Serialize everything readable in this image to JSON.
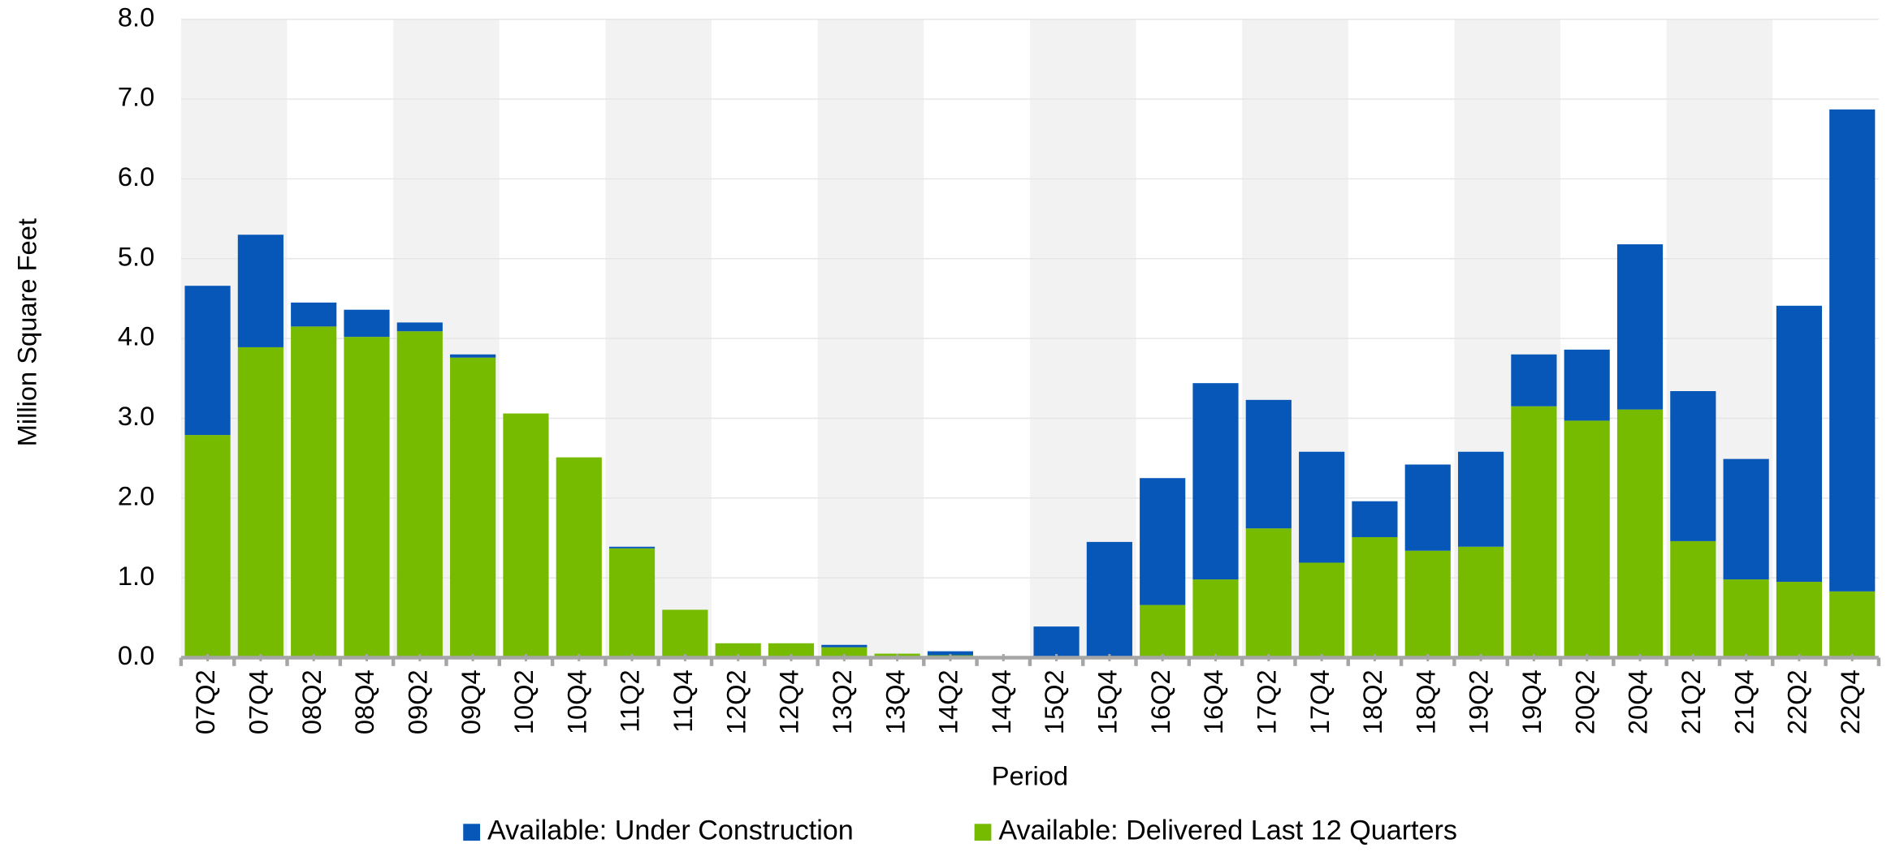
{
  "chart_data": {
    "type": "stacked_bar",
    "y_label": "Million Square Feet",
    "x_label": "Period",
    "categories": [
      "07Q2",
      "07Q4",
      "08Q2",
      "08Q4",
      "09Q2",
      "09Q4",
      "10Q2",
      "10Q4",
      "11Q2",
      "11Q4",
      "12Q2",
      "12Q4",
      "13Q2",
      "13Q4",
      "14Q2",
      "14Q4",
      "15Q2",
      "15Q4",
      "16Q2",
      "16Q4",
      "17Q2",
      "17Q4",
      "18Q2",
      "18Q4",
      "19Q2",
      "19Q4",
      "20Q2",
      "20Q4",
      "21Q2",
      "21Q4",
      "22Q2",
      "22Q4"
    ],
    "series": [
      {
        "name": "Available: Delivered Last 12 Quarters",
        "color": "#77bb00",
        "values": [
          2.79,
          3.89,
          4.15,
          4.02,
          4.09,
          3.76,
          3.06,
          2.51,
          1.37,
          0.6,
          0.18,
          0.18,
          0.13,
          0.05,
          0.03,
          0,
          0,
          0,
          0.66,
          0.98,
          1.62,
          1.19,
          1.51,
          1.34,
          1.39,
          3.15,
          2.97,
          3.11,
          1.46,
          0.98,
          0.95,
          0.83
        ]
      },
      {
        "name": "Available: Under Construction",
        "color": "#0757b9",
        "values": [
          1.87,
          1.41,
          0.3,
          0.34,
          0.11,
          0.04,
          0,
          0,
          0.02,
          0,
          0,
          0,
          0.03,
          0,
          0.05,
          0,
          0.39,
          1.45,
          1.59,
          2.46,
          1.61,
          1.39,
          0.45,
          1.08,
          1.19,
          0.65,
          0.89,
          2.07,
          1.88,
          1.51,
          3.46,
          6.04
        ]
      }
    ],
    "legend_order": [
      1,
      0
    ],
    "ylim": [
      0,
      8
    ],
    "yticks": [
      {
        "value": 0,
        "label": "0.0"
      },
      {
        "value": 1,
        "label": "1.0"
      },
      {
        "value": 2,
        "label": "2.0"
      },
      {
        "value": 3,
        "label": "3.0"
      },
      {
        "value": 4,
        "label": "4.0"
      },
      {
        "value": 5,
        "label": "5.0"
      },
      {
        "value": 6,
        "label": "6.0"
      },
      {
        "value": 7,
        "label": "7.0"
      },
      {
        "value": 8,
        "label": "8.0"
      }
    ],
    "grid": true,
    "legend": "bottom"
  }
}
